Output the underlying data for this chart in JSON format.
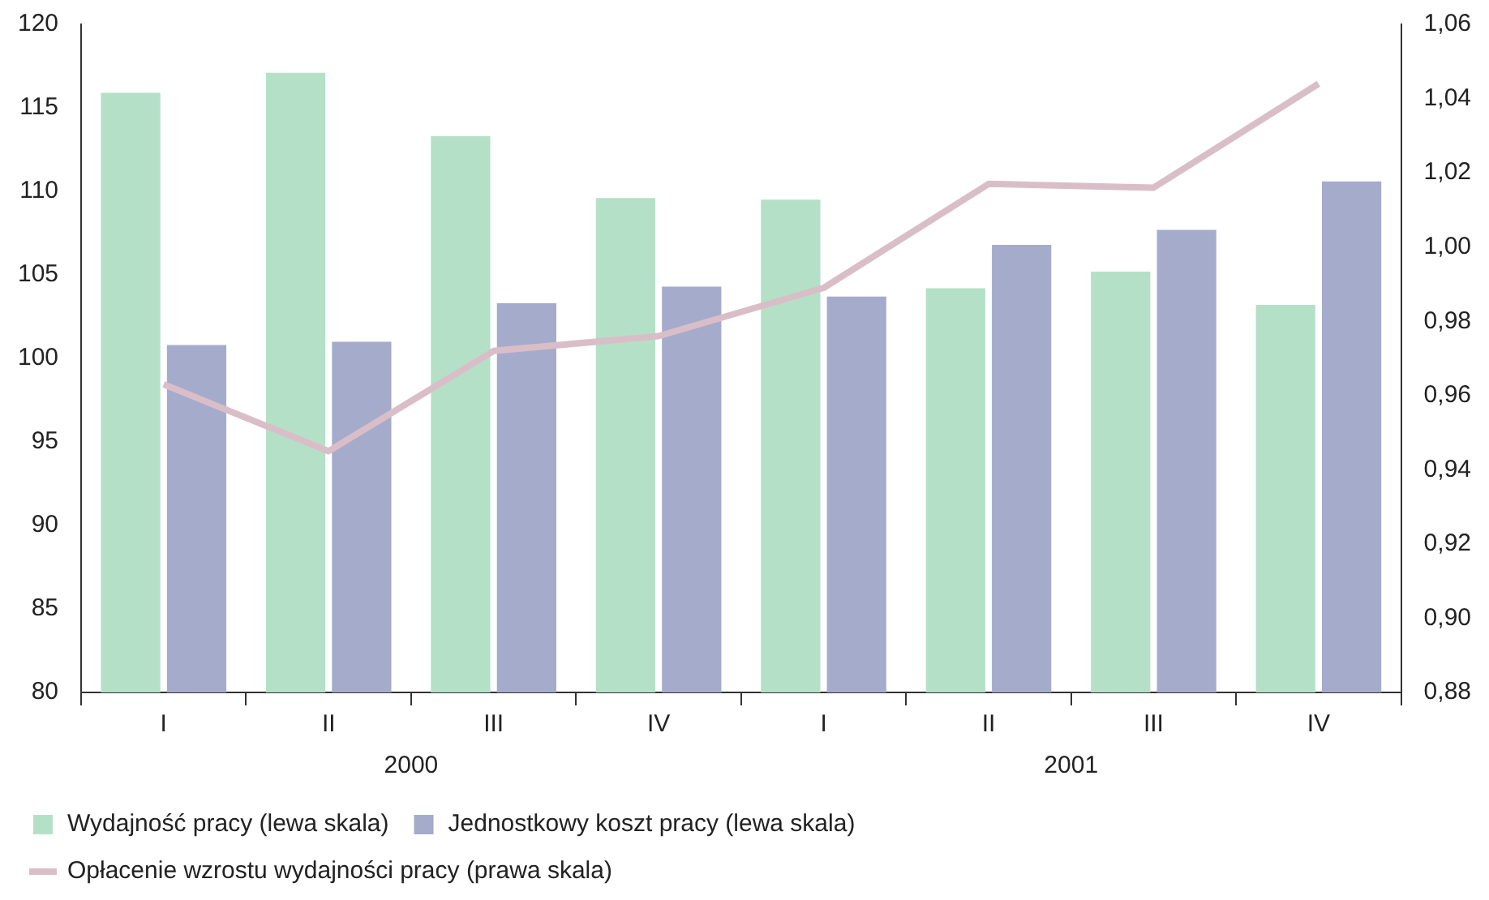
{
  "chart_data": {
    "type": "bar",
    "categories": [
      "I",
      "II",
      "III",
      "IV",
      "I",
      "II",
      "III",
      "IV"
    ],
    "series": [
      {
        "name": "Wydajność pracy (lewa skala)",
        "color": "#b5e0c8",
        "values": [
          115.9,
          117.1,
          113.3,
          109.6,
          109.5,
          104.2,
          105.2,
          103.2
        ]
      },
      {
        "name": "Jednostkowy koszt pracy (lewa skala)",
        "color": "#a5abcb",
        "values": [
          100.8,
          101.0,
          103.3,
          104.3,
          103.7,
          106.8,
          107.7,
          110.6
        ]
      },
      {
        "name": "Opłacenie wzrostu wydajności pracy (prawa skala)",
        "color": "#d9bec8",
        "type": "line",
        "axis": "y2",
        "values": [
          0.963,
          0.945,
          0.972,
          0.976,
          0.989,
          1.017,
          1.016,
          1.044
        ]
      }
    ],
    "ylim": [
      80,
      120
    ],
    "yticks": [
      80,
      85,
      90,
      95,
      100,
      105,
      110,
      115,
      120
    ],
    "y2lim": [
      0.88,
      1.06
    ],
    "y2ticks": [
      {
        "value": 0.88,
        "label": "0,88"
      },
      {
        "value": 0.9,
        "label": "0,90"
      },
      {
        "value": 0.92,
        "label": "0,92"
      },
      {
        "value": 0.94,
        "label": "0,94"
      },
      {
        "value": 0.96,
        "label": "0,96"
      },
      {
        "value": 0.98,
        "label": "0,98"
      },
      {
        "value": 1.0,
        "label": "1,00"
      },
      {
        "value": 1.02,
        "label": "1,02"
      },
      {
        "value": 1.04,
        "label": "1,04"
      },
      {
        "value": 1.06,
        "label": "1,06"
      }
    ],
    "annotations": [
      "2000",
      "2001"
    ],
    "grid": false,
    "legend": "bottom",
    "marker": "none",
    "line_style": "solid"
  }
}
